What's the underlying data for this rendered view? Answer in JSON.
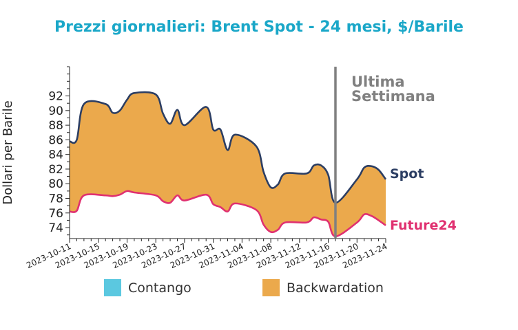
{
  "chart_data": {
    "type": "area",
    "title": "Prezzi giornalieri: Brent Spot - 24 mesi, $/Barile",
    "xlabel": "",
    "ylabel": "Dollari per Barile",
    "ylim": [
      72.5,
      96
    ],
    "xlim": [
      "2023-10-11",
      "2023-11-24"
    ],
    "y_ticks": [
      74,
      76,
      78,
      80,
      82,
      84,
      86,
      88,
      90,
      92
    ],
    "x_ticks": [
      "2023-10-11",
      "2023-10-15",
      "2023-10-19",
      "2023-10-23",
      "2023-10-27",
      "2023-10-31",
      "2023-11-04",
      "2023-11-08",
      "2023-11-12",
      "2023-11-16",
      "2023-11-20",
      "2023-11-24"
    ],
    "grid": false,
    "legend_position": "bottom",
    "colors": {
      "title": "#1aa7c8",
      "spot": "#2c3e63",
      "future": "#e03070",
      "contango": "#5bc8e0",
      "backwardation": "#eba94c",
      "marker": "#808080",
      "marker_text": "#808080"
    },
    "series": [
      {
        "name": "Spot",
        "x": [
          "2023-10-11",
          "2023-10-12",
          "2023-10-13",
          "2023-10-16",
          "2023-10-17",
          "2023-10-18",
          "2023-10-19",
          "2023-10-20",
          "2023-10-23",
          "2023-10-24",
          "2023-10-25",
          "2023-10-26",
          "2023-10-27",
          "2023-10-30",
          "2023-10-31",
          "2023-11-01",
          "2023-11-02",
          "2023-11-03",
          "2023-11-06",
          "2023-11-07",
          "2023-11-08",
          "2023-11-09",
          "2023-11-10",
          "2023-11-13",
          "2023-11-14",
          "2023-11-15",
          "2023-11-16",
          "2023-11-17",
          "2023-11-20",
          "2023-11-21",
          "2023-11-22",
          "2023-11-23",
          "2023-11-24"
        ],
        "values": [
          85.8,
          86.0,
          90.9,
          90.9,
          89.7,
          90.0,
          91.5,
          92.4,
          92.2,
          89.6,
          88.2,
          90.1,
          88.0,
          90.5,
          87.4,
          87.4,
          84.6,
          86.7,
          85.1,
          81.6,
          79.5,
          79.9,
          81.4,
          81.4,
          82.5,
          82.5,
          81.2,
          77.4,
          80.6,
          82.2,
          82.4,
          81.9,
          80.6
        ]
      },
      {
        "name": "Future24",
        "x": [
          "2023-10-11",
          "2023-10-12",
          "2023-10-13",
          "2023-10-16",
          "2023-10-17",
          "2023-10-18",
          "2023-10-19",
          "2023-10-20",
          "2023-10-23",
          "2023-10-24",
          "2023-10-25",
          "2023-10-26",
          "2023-10-27",
          "2023-10-30",
          "2023-10-31",
          "2023-11-01",
          "2023-11-02",
          "2023-11-03",
          "2023-11-06",
          "2023-11-07",
          "2023-11-08",
          "2023-11-09",
          "2023-11-10",
          "2023-11-13",
          "2023-11-14",
          "2023-11-15",
          "2023-11-16",
          "2023-11-17",
          "2023-11-20",
          "2023-11-21",
          "2023-11-22",
          "2023-11-23",
          "2023-11-24"
        ],
        "values": [
          76.2,
          76.3,
          78.4,
          78.4,
          78.3,
          78.5,
          79.0,
          78.8,
          78.4,
          77.6,
          77.4,
          78.4,
          77.7,
          78.5,
          77.2,
          76.8,
          76.2,
          77.3,
          76.4,
          74.4,
          73.4,
          73.7,
          74.7,
          74.7,
          75.4,
          75.1,
          74.8,
          72.8,
          74.7,
          75.8,
          75.6,
          75.0,
          74.3
        ]
      }
    ],
    "legend": [
      {
        "label": "Contango",
        "color_key": "contango"
      },
      {
        "label": "Backwardation",
        "color_key": "backwardation"
      }
    ],
    "annotations": {
      "last_week_label": [
        "Ultima",
        "Settimana"
      ],
      "last_week_date": "2023-11-17",
      "spot_label": "Spot",
      "future_label": "Future24"
    }
  }
}
